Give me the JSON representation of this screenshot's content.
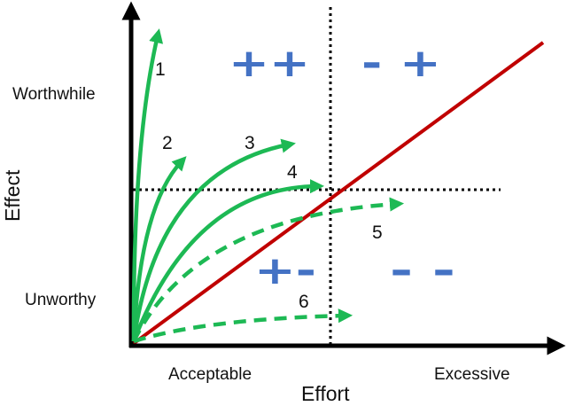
{
  "axes": {
    "y_title": "Effect",
    "x_title": "Effort",
    "y_high": "Worthwhile",
    "y_low": "Unworthy",
    "x_low": "Acceptable",
    "x_high": "Excessive"
  },
  "quadrants": {
    "top_left": "++",
    "top_right": "- +",
    "bottom_left": "+-",
    "bottom_right": "- -"
  },
  "curves": [
    {
      "label": "1"
    },
    {
      "label": "2"
    },
    {
      "label": "3"
    },
    {
      "label": "4"
    },
    {
      "label": "5"
    },
    {
      "label": "6"
    }
  ],
  "colors": {
    "curve": "#1DB954",
    "diagonal": "#C00000",
    "symbols": "#4472C4",
    "axis": "#000000"
  }
}
